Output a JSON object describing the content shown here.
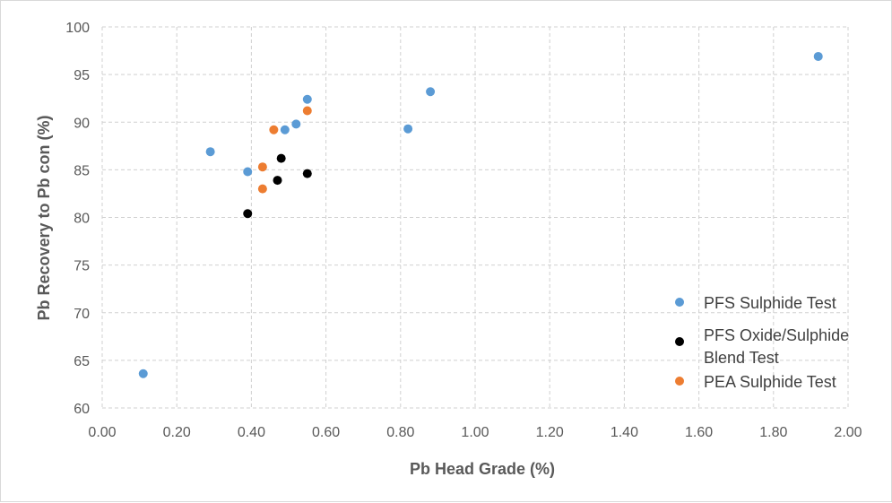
{
  "chart_data": {
    "type": "scatter",
    "title": "",
    "xlabel": "Pb Head Grade (%)",
    "ylabel": "Pb Recovery to Pb con (%)",
    "xlim": [
      0,
      2
    ],
    "ylim": [
      60,
      100
    ],
    "xticks": [
      "0.00",
      "0.20",
      "0.40",
      "0.60",
      "0.80",
      "1.00",
      "1.20",
      "1.40",
      "1.60",
      "1.80",
      "2.00"
    ],
    "yticks": [
      "60",
      "65",
      "70",
      "75",
      "80",
      "85",
      "90",
      "95",
      "100"
    ],
    "grid": true,
    "legend_position": "right-bottom",
    "series": [
      {
        "name": "PFS Sulphide Test",
        "color": "#5b9bd5",
        "points": [
          {
            "x": 0.11,
            "y": 63.6
          },
          {
            "x": 0.29,
            "y": 86.9
          },
          {
            "x": 0.39,
            "y": 84.8
          },
          {
            "x": 0.49,
            "y": 89.2
          },
          {
            "x": 0.52,
            "y": 89.8
          },
          {
            "x": 0.55,
            "y": 92.4
          },
          {
            "x": 0.82,
            "y": 89.3
          },
          {
            "x": 0.88,
            "y": 93.2
          },
          {
            "x": 1.92,
            "y": 96.9
          }
        ]
      },
      {
        "name": "PFS Oxide/Sulphide Blend Test",
        "legend_lines": [
          "PFS Oxide/Sulphide",
          "Blend Test"
        ],
        "color": "#000000",
        "points": [
          {
            "x": 0.39,
            "y": 80.4
          },
          {
            "x": 0.47,
            "y": 83.9
          },
          {
            "x": 0.48,
            "y": 86.2
          },
          {
            "x": 0.55,
            "y": 84.6
          }
        ]
      },
      {
        "name": "PEA Sulphide Test",
        "color": "#ed7d31",
        "points": [
          {
            "x": 0.43,
            "y": 85.3
          },
          {
            "x": 0.43,
            "y": 83.0
          },
          {
            "x": 0.46,
            "y": 89.2
          },
          {
            "x": 0.55,
            "y": 91.2
          }
        ]
      }
    ]
  }
}
